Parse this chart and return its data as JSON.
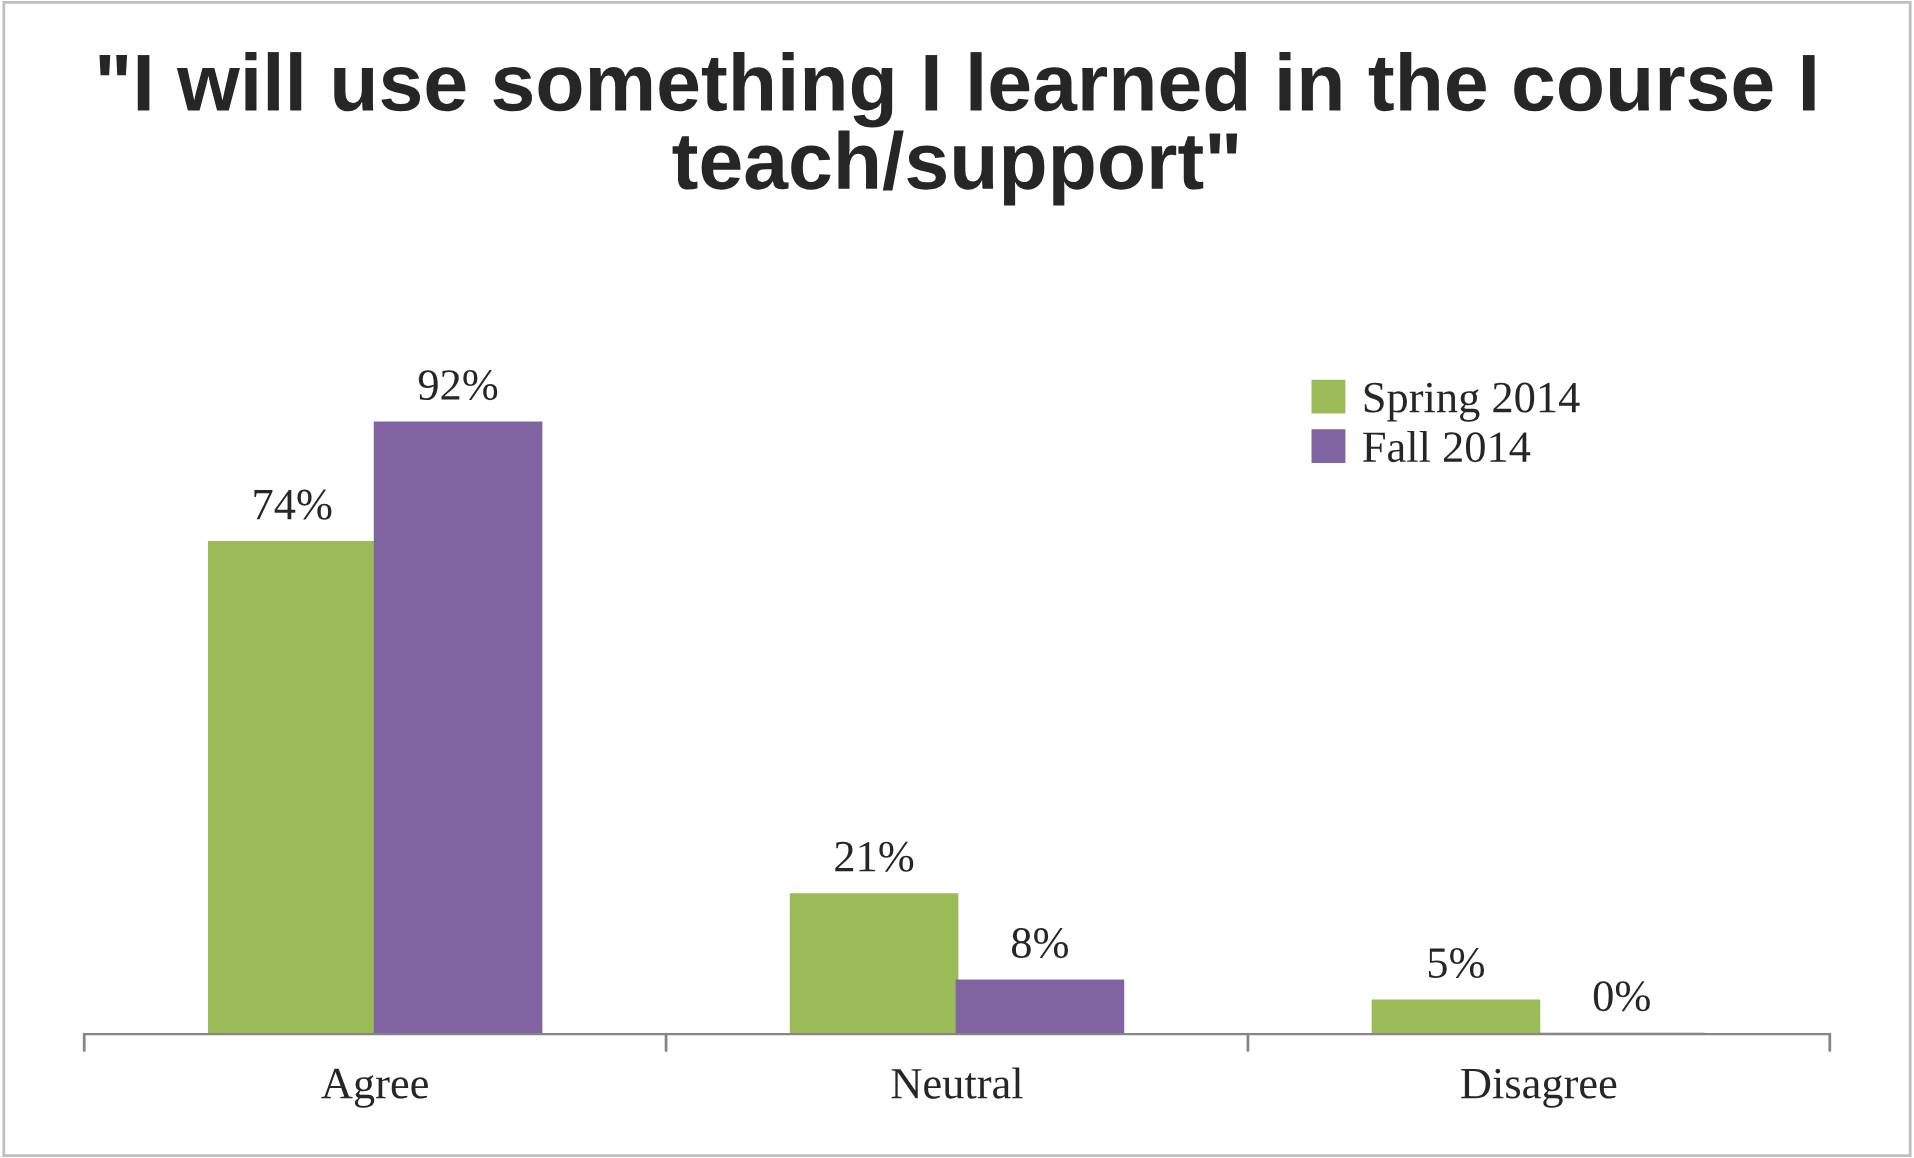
{
  "chart_data": {
    "type": "bar",
    "title": "\"I will use something I learned in the course I teach/support\"",
    "categories": [
      "Agree",
      "Neutral",
      "Disagree"
    ],
    "series": [
      {
        "name": "Spring 2014",
        "color": "#9bbb59",
        "values": [
          74,
          21,
          5
        ],
        "value_labels": [
          "74%",
          "21%",
          "5%"
        ]
      },
      {
        "name": "Fall 2014",
        "color": "#8064a2",
        "values": [
          92,
          8,
          0
        ],
        "value_labels": [
          "92%",
          "8%",
          "0%"
        ]
      }
    ],
    "legend": "top right",
    "grid": false
  }
}
